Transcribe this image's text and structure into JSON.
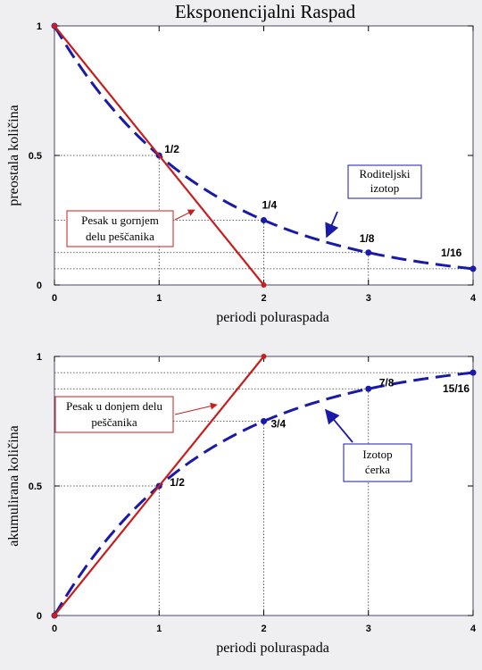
{
  "title": "Eksponencijalni Raspad",
  "colors": {
    "parent": "#1a1aa8",
    "sand": "#c81e1e",
    "panel_bg": "#ffffff",
    "grid": "#333333"
  },
  "chart_data": [
    {
      "type": "line",
      "xlabel": "periodi poluraspada",
      "ylabel": "preostala količina",
      "xlim": [
        0,
        4
      ],
      "ylim": [
        0,
        1
      ],
      "xticks": [
        "0",
        "1",
        "2",
        "3",
        "4"
      ],
      "yticks": [
        "0",
        "0.5",
        "1"
      ],
      "series": [
        {
          "style": "dashed",
          "color": "#1a1aa8",
          "x": [
            0,
            1,
            2,
            3,
            4
          ],
          "y": [
            1,
            0.5,
            0.25,
            0.125,
            0.0625
          ]
        },
        {
          "style": "solid",
          "color": "#c81e1e",
          "x": [
            0,
            2
          ],
          "y": [
            1,
            0
          ]
        }
      ],
      "point_labels": [
        {
          "x": 1,
          "y": 0.5,
          "text": "1/2"
        },
        {
          "x": 2,
          "y": 0.25,
          "text": "1/4"
        },
        {
          "x": 3,
          "y": 0.125,
          "text": "1/8"
        },
        {
          "x": 4,
          "y": 0.0625,
          "text": "1/16"
        }
      ],
      "annotations": [
        {
          "lines": [
            "Roditeljski",
            "izotop"
          ],
          "color": "#1a1aa8"
        },
        {
          "lines": [
            "Pesak u gornjem",
            "delu peščanika"
          ],
          "color": "#c81e1e"
        }
      ]
    },
    {
      "type": "line",
      "xlabel": "periodi poluraspada",
      "ylabel": "akumulirana količina",
      "xlim": [
        0,
        4
      ],
      "ylim": [
        0,
        1
      ],
      "xticks": [
        "0",
        "1",
        "2",
        "3",
        "4"
      ],
      "yticks": [
        "0",
        "0.5",
        "1"
      ],
      "series": [
        {
          "style": "dashed",
          "color": "#1a1aa8",
          "x": [
            0,
            1,
            2,
            3,
            4
          ],
          "y": [
            0,
            0.5,
            0.75,
            0.875,
            0.9375
          ]
        },
        {
          "style": "solid",
          "color": "#c81e1e",
          "x": [
            0,
            2
          ],
          "y": [
            0,
            1
          ]
        }
      ],
      "point_labels": [
        {
          "x": 1,
          "y": 0.5,
          "text": "1/2"
        },
        {
          "x": 2,
          "y": 0.75,
          "text": "3/4"
        },
        {
          "x": 3,
          "y": 0.875,
          "text": "7/8"
        },
        {
          "x": 4,
          "y": 0.9375,
          "text": "15/16"
        }
      ],
      "annotations": [
        {
          "lines": [
            "Pesak u donjem delu",
            "peščanika"
          ],
          "color": "#c81e1e"
        },
        {
          "lines": [
            "Izotop",
            "ćerka"
          ],
          "color": "#1a1aa8"
        }
      ]
    }
  ]
}
